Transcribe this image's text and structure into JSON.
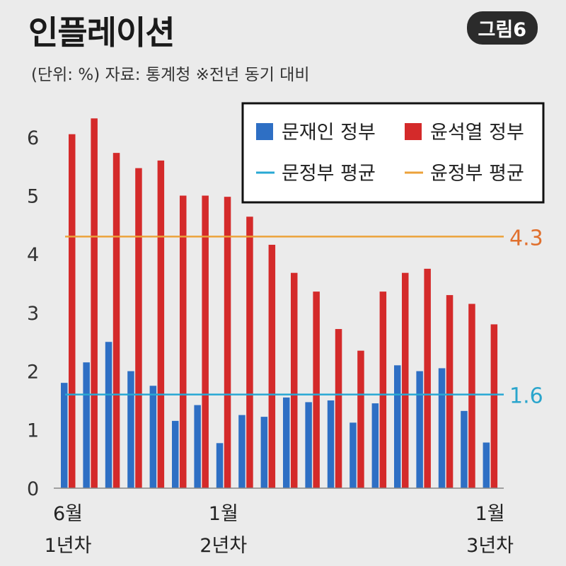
{
  "header": {
    "title": "인플레이션",
    "badge": "그림6",
    "subtitle": "(단위: %) 자료: 통계청  ※전년 동기 대비"
  },
  "colors": {
    "moon": "#2e6fc4",
    "yoon": "#d42a2a",
    "moon_avg": "#28a8d4",
    "yoon_avg": "#eca23a",
    "yoon_avg_label": "#e0702e",
    "moon_avg_label": "#2aa5cc"
  },
  "chart_data": {
    "type": "bar",
    "title": "인플레이션",
    "ylim": [
      0,
      6.5
    ],
    "y_ticks": [
      "0",
      "1",
      "2",
      "3",
      "4",
      "5",
      "6"
    ],
    "grid": false,
    "legend_position": "top-right",
    "x_tick_labels": [
      {
        "index": 0,
        "line1": "6월",
        "line2": "1년차"
      },
      {
        "index": 7,
        "line1": "1월",
        "line2": "2년차"
      },
      {
        "index": 19,
        "line1": "1월",
        "line2": "3년차"
      }
    ],
    "series": [
      {
        "name": "문재인 정부",
        "values": [
          1.8,
          2.15,
          2.5,
          2.0,
          1.75,
          1.15,
          1.42,
          0.77,
          1.25,
          1.22,
          1.55,
          1.47,
          1.5,
          1.12,
          1.45,
          2.1,
          2.0,
          2.05,
          1.32,
          0.78
        ]
      },
      {
        "name": "윤석열 정부",
        "values": [
          6.05,
          6.32,
          5.73,
          5.47,
          5.6,
          5.0,
          5.0,
          4.98,
          4.64,
          4.16,
          3.68,
          3.36,
          2.72,
          2.35,
          3.36,
          3.68,
          3.75,
          3.3,
          3.15,
          2.8
        ]
      }
    ],
    "averages": [
      {
        "name": "문정부 평균",
        "value": 1.6,
        "label": "1.6"
      },
      {
        "name": "윤정부 평균",
        "value": 4.3,
        "label": "4.3"
      }
    ]
  }
}
